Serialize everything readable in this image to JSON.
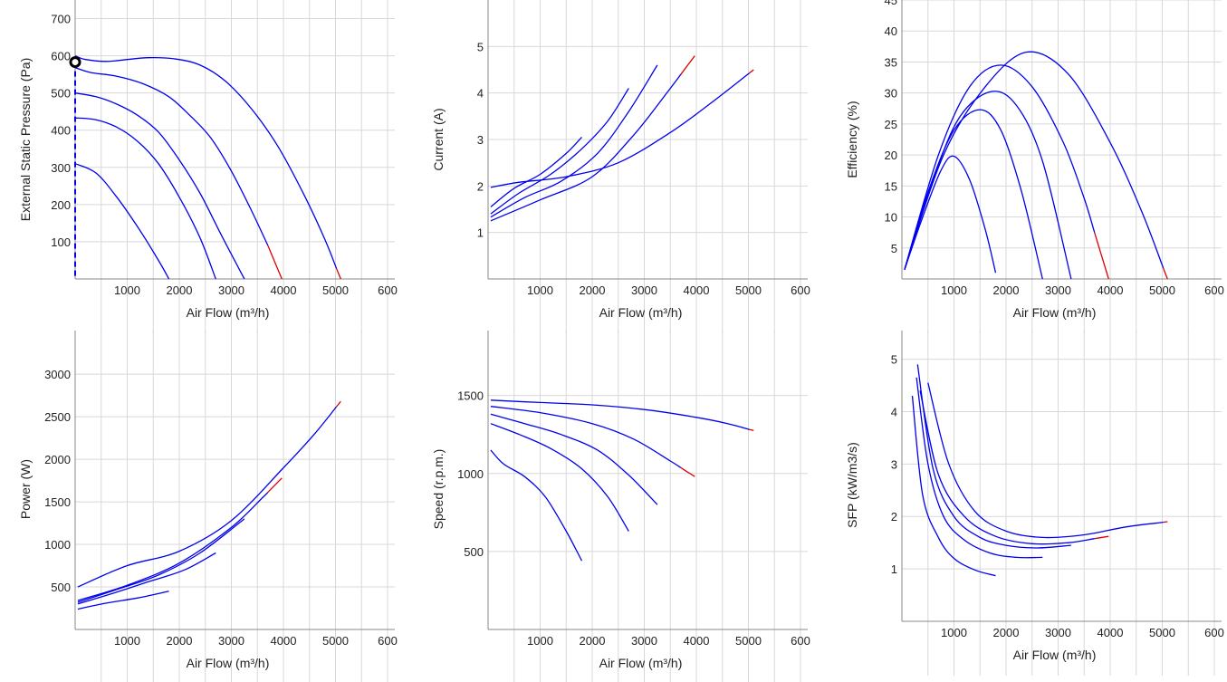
{
  "colors": {
    "curve": "#0000ee",
    "overload": "#dd0000",
    "grid": "#d8d8d8",
    "axis": "#888888"
  },
  "chart_data": [
    {
      "id": "pressure",
      "type": "line",
      "xlabel": "Air Flow (m³/h)",
      "ylabel": "External Static Pressure (Pa)",
      "xlim": [
        0,
        6000
      ],
      "ylim": [
        0,
        750
      ],
      "xticks": [
        "1000",
        "2000",
        "3000",
        "4000",
        "5000",
        "600"
      ],
      "yticks": [
        "100",
        "200",
        "300",
        "400",
        "500",
        "600",
        "700"
      ],
      "marker": {
        "x": 0,
        "y": 583
      },
      "series": [
        {
          "x": [
            0,
            400,
            800,
            1200,
            1600,
            1800
          ],
          "y": [
            310,
            285,
            220,
            140,
            50,
            0
          ]
        },
        {
          "x": [
            0,
            400,
            800,
            1200,
            1600,
            2000,
            2400,
            2700
          ],
          "y": [
            433,
            428,
            408,
            370,
            310,
            220,
            110,
            0
          ]
        },
        {
          "x": [
            0,
            400,
            800,
            1200,
            1600,
            2000,
            2400,
            2800,
            3250
          ],
          "y": [
            500,
            490,
            470,
            440,
            395,
            320,
            230,
            120,
            0
          ]
        },
        {
          "x": [
            0,
            300,
            800,
            1300,
            1800,
            2200,
            2600,
            3000,
            3400,
            3700,
            3970
          ],
          "y": [
            568,
            555,
            545,
            525,
            490,
            440,
            380,
            290,
            180,
            90,
            0
          ],
          "overload_from": 3700
        },
        {
          "x": [
            0,
            200,
            600,
            1000,
            1400,
            1900,
            2400,
            2900,
            3400,
            3900,
            4400,
            4800,
            5100
          ],
          "y": [
            600,
            590,
            585,
            590,
            595,
            592,
            575,
            530,
            455,
            355,
            225,
            105,
            0
          ],
          "overload_from": 5020
        }
      ]
    },
    {
      "id": "current",
      "type": "line",
      "xlabel": "Air Flow (m³/h)",
      "ylabel": "Current (A)",
      "xlim": [
        0,
        6000
      ],
      "ylim": [
        0,
        6
      ],
      "xticks": [
        "1000",
        "2000",
        "3000",
        "4000",
        "5000",
        "600"
      ],
      "yticks": [
        "1",
        "2",
        "3",
        "4",
        "5"
      ],
      "series": [
        {
          "x": [
            50,
            500,
            1000,
            1500,
            1800
          ],
          "y": [
            1.55,
            1.95,
            2.25,
            2.7,
            3.05
          ]
        },
        {
          "x": [
            50,
            600,
            1200,
            1800,
            2300,
            2700
          ],
          "y": [
            1.4,
            1.85,
            2.25,
            2.8,
            3.4,
            4.1
          ]
        },
        {
          "x": [
            50,
            700,
            1400,
            2100,
            2700,
            3250
          ],
          "y": [
            1.33,
            1.75,
            2.1,
            2.7,
            3.6,
            4.6
          ]
        },
        {
          "x": [
            50,
            1000,
            2000,
            2800,
            3500,
            3970
          ],
          "y": [
            1.25,
            1.7,
            2.2,
            3.1,
            4.1,
            4.8
          ],
          "overload_from": 3700
        },
        {
          "x": [
            50,
            600,
            1500,
            2500,
            3500,
            4300,
            5100
          ],
          "y": [
            1.97,
            2.08,
            2.2,
            2.5,
            3.15,
            3.8,
            4.5
          ],
          "overload_from": 5020
        }
      ]
    },
    {
      "id": "efficiency",
      "type": "line",
      "xlabel": "Air Flow (m³/h)",
      "ylabel": "Efficiency (%)",
      "xlim": [
        0,
        6000
      ],
      "ylim": [
        0,
        45
      ],
      "xticks": [
        "1000",
        "2000",
        "3000",
        "4000",
        "5000",
        "600"
      ],
      "yticks": [
        "5",
        "10",
        "15",
        "20",
        "25",
        "30",
        "35",
        "40",
        "45"
      ],
      "series": [
        {
          "x": [
            50,
            400,
            750,
            1000,
            1300,
            1600,
            1800
          ],
          "y": [
            1.5,
            10,
            17.5,
            19.8,
            16,
            8,
            1
          ]
        },
        {
          "x": [
            50,
            500,
            1000,
            1500,
            1900,
            2300,
            2700
          ],
          "y": [
            1.5,
            14,
            24,
            27.3,
            24,
            14,
            0
          ]
        },
        {
          "x": [
            50,
            600,
            1100,
            1700,
            2200,
            2700,
            3250
          ],
          "y": [
            1.5,
            16,
            26,
            30.2,
            28,
            19,
            0
          ]
        },
        {
          "x": [
            50,
            700,
            1300,
            1900,
            2500,
            3100,
            3500,
            3970
          ],
          "y": [
            1.5,
            20,
            31,
            34.5,
            31,
            22,
            13,
            0
          ],
          "overload_from": 3700
        },
        {
          "x": [
            50,
            800,
            1600,
            2400,
            3200,
            4000,
            4600,
            5100
          ],
          "y": [
            1.5,
            20,
            31,
            36.6,
            33,
            22,
            11,
            0
          ],
          "overload_from": 5020
        }
      ]
    },
    {
      "id": "power",
      "type": "line",
      "xlabel": "Air Flow (m³/h)",
      "ylabel": "Power (W)",
      "xlim": [
        0,
        6000
      ],
      "ylim": [
        0,
        3300
      ],
      "xticks": [
        "1000",
        "2000",
        "3000",
        "4000",
        "5000",
        "600"
      ],
      "yticks": [
        "500",
        "1000",
        "1500",
        "2000",
        "2500",
        "3000"
      ],
      "series": [
        {
          "x": [
            50,
            600,
            1200,
            1800
          ],
          "y": [
            240,
            310,
            370,
            450
          ]
        },
        {
          "x": [
            50,
            700,
            1400,
            2100,
            2700
          ],
          "y": [
            300,
            420,
            560,
            700,
            900
          ]
        },
        {
          "x": [
            50,
            800,
            1600,
            2400,
            3250
          ],
          "y": [
            320,
            470,
            640,
            900,
            1300
          ]
        },
        {
          "x": [
            50,
            1000,
            2000,
            3000,
            3600,
            3970
          ],
          "y": [
            340,
            520,
            780,
            1200,
            1550,
            1780
          ],
          "overload_from": 3700
        },
        {
          "x": [
            50,
            1000,
            2000,
            3000,
            4000,
            4600,
            5100
          ],
          "y": [
            500,
            750,
            920,
            1280,
            1900,
            2300,
            2680
          ],
          "overload_from": 5020
        }
      ]
    },
    {
      "id": "speed",
      "type": "line",
      "xlabel": "Air Flow (m³/h)",
      "ylabel": "Speed (r.p.m.)",
      "xlim": [
        0,
        6000
      ],
      "ylim": [
        0,
        1800
      ],
      "xticks": [
        "1000",
        "2000",
        "3000",
        "4000",
        "5000",
        "600"
      ],
      "yticks": [
        "500",
        "1000",
        "1500"
      ],
      "series": [
        {
          "x": [
            50,
            300,
            700,
            1100,
            1500,
            1800
          ],
          "y": [
            1150,
            1060,
            980,
            850,
            630,
            440
          ]
        },
        {
          "x": [
            50,
            600,
            1200,
            1800,
            2300,
            2700
          ],
          "y": [
            1320,
            1250,
            1160,
            1030,
            850,
            630
          ]
        },
        {
          "x": [
            50,
            700,
            1400,
            2100,
            2700,
            3250
          ],
          "y": [
            1380,
            1320,
            1250,
            1150,
            990,
            800
          ]
        },
        {
          "x": [
            50,
            1000,
            2000,
            2800,
            3500,
            3970
          ],
          "y": [
            1430,
            1390,
            1320,
            1220,
            1080,
            980
          ],
          "overload_from": 3700
        },
        {
          "x": [
            50,
            1000,
            2000,
            3000,
            4000,
            4600,
            5100
          ],
          "y": [
            1470,
            1455,
            1440,
            1410,
            1360,
            1320,
            1275
          ],
          "overload_from": 5020
        }
      ]
    },
    {
      "id": "sfp",
      "type": "line",
      "xlabel": "Air Flow (m³/h)",
      "ylabel": "SFP (kW/m3/s)",
      "xlim": [
        0,
        6000
      ],
      "ylim": [
        0,
        5.2
      ],
      "xticks": [
        "1000",
        "2000",
        "3000",
        "4000",
        "5000",
        "600"
      ],
      "yticks": [
        "1",
        "2",
        "3",
        "4",
        "5"
      ],
      "series": [
        {
          "x": [
            200,
            400,
            700,
            1000,
            1400,
            1800
          ],
          "y": [
            4.3,
            2.4,
            1.6,
            1.2,
            0.98,
            0.87
          ]
        },
        {
          "x": [
            280,
            500,
            800,
            1200,
            1700,
            2200,
            2700
          ],
          "y": [
            4.65,
            3.0,
            2.0,
            1.55,
            1.3,
            1.22,
            1.22
          ]
        },
        {
          "x": [
            300,
            600,
            1000,
            1500,
            2000,
            2600,
            3250
          ],
          "y": [
            4.9,
            2.9,
            2.0,
            1.6,
            1.45,
            1.4,
            1.45
          ]
        },
        {
          "x": [
            350,
            700,
            1200,
            1800,
            2500,
            3200,
            3970
          ],
          "y": [
            4.4,
            2.8,
            2.0,
            1.62,
            1.48,
            1.5,
            1.62
          ],
          "overload_from": 3700
        },
        {
          "x": [
            500,
            900,
            1400,
            2000,
            2700,
            3500,
            4300,
            5100
          ],
          "y": [
            4.55,
            3.0,
            2.1,
            1.72,
            1.6,
            1.65,
            1.8,
            1.9
          ],
          "overload_from": 5020
        }
      ]
    }
  ]
}
